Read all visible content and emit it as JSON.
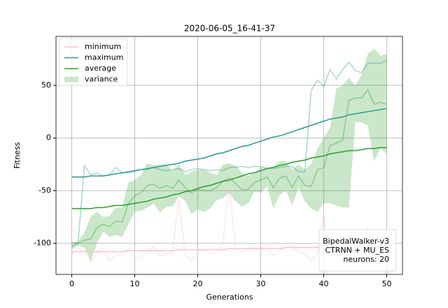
{
  "chart_data": {
    "type": "line",
    "title": "2020-06-05_16-41-37",
    "x_label": "Generations",
    "y_label": "Fitness",
    "x": [
      0,
      1,
      2,
      3,
      4,
      5,
      6,
      7,
      8,
      9,
      10,
      11,
      12,
      13,
      14,
      15,
      16,
      17,
      18,
      19,
      20,
      21,
      22,
      23,
      24,
      25,
      26,
      27,
      28,
      29,
      30,
      31,
      32,
      33,
      34,
      35,
      36,
      37,
      38,
      39,
      40,
      41,
      42,
      43,
      44,
      45,
      46,
      47,
      48,
      49,
      50
    ],
    "xlim": [
      -2.5,
      52.5
    ],
    "ylim": [
      -129.5,
      96.5
    ],
    "xticks": [
      0,
      10,
      20,
      30,
      40,
      50
    ],
    "yticks": [
      -100,
      -50,
      0,
      50
    ],
    "grid": true,
    "legend": "upper left",
    "series": [
      {
        "name": "minimum",
        "color": "#ffc0cb",
        "values": [
          -110,
          -104,
          -108,
          -117,
          -110,
          -105,
          -117,
          -112,
          -110,
          -104,
          -115,
          -113,
          -108,
          -103,
          -112,
          -110,
          -108,
          -57,
          -110,
          -117,
          -108,
          -105,
          -110,
          -108,
          -100,
          -45,
          -105,
          -108,
          -105,
          -104,
          -106,
          -100,
          -112,
          -106,
          -104,
          -103,
          -108,
          -110,
          -117,
          -110,
          -72,
          -110,
          -104,
          -110,
          -108,
          -106,
          -100,
          -85,
          -108,
          -100,
          -102
        ],
        "trend": [
          -108,
          -108,
          -108,
          -108,
          -108,
          -108,
          -108,
          -108,
          -108,
          -107,
          -107,
          -107,
          -107,
          -107,
          -107,
          -107,
          -107,
          -106,
          -106,
          -106,
          -106,
          -106,
          -106,
          -106,
          -106,
          -105,
          -105,
          -105,
          -105,
          -105,
          -105,
          -105,
          -105,
          -105,
          -104,
          -104,
          -104,
          -104,
          -104,
          -104,
          -104,
          -104,
          -103,
          -103,
          -103,
          -103,
          -103,
          -103,
          -103,
          -102,
          -102
        ]
      },
      {
        "name": "maximum",
        "color": "#2a9a8e",
        "values": [
          -99,
          -100,
          -26,
          -35,
          -33,
          -36,
          -35,
          -28,
          -33,
          -33,
          -32,
          -30,
          -30,
          -28,
          -30,
          -31,
          -30,
          -29,
          -32,
          -30,
          -29,
          -30,
          -31,
          -30,
          -31,
          -28,
          -28,
          -27,
          -28,
          -27,
          -27,
          -29,
          -29,
          -28,
          -27,
          -27,
          -32,
          -32,
          45,
          55,
          49,
          65,
          56,
          65,
          72,
          64,
          62,
          71,
          71,
          71,
          74
        ],
        "trend": [
          -37,
          -37,
          -37,
          -36,
          -36,
          -36,
          -35,
          -34,
          -33,
          -32,
          -31,
          -30,
          -29,
          -28,
          -27,
          -26,
          -25,
          -24,
          -22,
          -21,
          -20,
          -19,
          -17,
          -15,
          -14,
          -12,
          -10,
          -8,
          -7,
          -5,
          -3,
          -1,
          1,
          2,
          4,
          6,
          8,
          10,
          12,
          14,
          16,
          18,
          19,
          20,
          22,
          23,
          24,
          25,
          26,
          27,
          28
        ]
      },
      {
        "name": "average",
        "color": "#2ca02c",
        "values": [
          -103,
          -100,
          -97,
          -96,
          -85,
          -82,
          -84,
          -79,
          -80,
          -62,
          -55,
          -52,
          -45,
          -44,
          -48,
          -45,
          -48,
          -40,
          -47,
          -52,
          -49,
          -50,
          -50,
          -47,
          -41,
          -38,
          -43,
          -49,
          -49,
          -42,
          -40,
          -37,
          -47,
          -38,
          -36,
          -47,
          -36,
          -45,
          -46,
          -30,
          -28,
          -7,
          -5,
          -2,
          36,
          38,
          38,
          46,
          32,
          34,
          32
        ],
        "trend": [
          -67,
          -67,
          -67,
          -67,
          -66,
          -66,
          -65,
          -64,
          -64,
          -63,
          -62,
          -61,
          -60,
          -58,
          -57,
          -56,
          -54,
          -53,
          -51,
          -50,
          -48,
          -46,
          -45,
          -43,
          -41,
          -40,
          -38,
          -36,
          -34,
          -33,
          -31,
          -29,
          -28,
          -26,
          -25,
          -23,
          -22,
          -21,
          -19,
          -18,
          -17,
          -15,
          -14,
          -13,
          -12,
          -12,
          -11,
          -10,
          -10,
          -9,
          -9
        ]
      },
      {
        "name": "variance",
        "color": "#2ca02c",
        "upper": [
          -100,
          -98,
          -90,
          -75,
          -70,
          -75,
          -74,
          -66,
          -66,
          -42,
          -40,
          -35,
          -24,
          -26,
          -25,
          -25,
          -31,
          -25,
          -35,
          -32,
          -30,
          -30,
          -33,
          -35,
          -25,
          -24,
          -26,
          -33,
          -36,
          -33,
          -28,
          -28,
          -27,
          -22,
          -22,
          -30,
          -25,
          -30,
          -25,
          -10,
          0,
          10,
          47,
          50,
          57,
          50,
          60,
          80,
          85,
          78,
          80
        ],
        "lower": [
          -106,
          -102,
          -104,
          -117,
          -100,
          -89,
          -94,
          -92,
          -94,
          -82,
          -70,
          -69,
          -66,
          -62,
          -71,
          -65,
          -65,
          -55,
          -60,
          -72,
          -68,
          -70,
          -67,
          -59,
          -57,
          -52,
          -60,
          -65,
          -62,
          -51,
          -52,
          -46,
          -67,
          -54,
          -50,
          -64,
          -47,
          -60,
          -67,
          -70,
          -62,
          -62,
          -64,
          -66,
          -66,
          15,
          15,
          12,
          -22,
          -10,
          -15
        ]
      }
    ],
    "annotation": [
      "BipedalWalker-v3",
      "CTRNN + MU_ES",
      "neurons: 20"
    ]
  }
}
